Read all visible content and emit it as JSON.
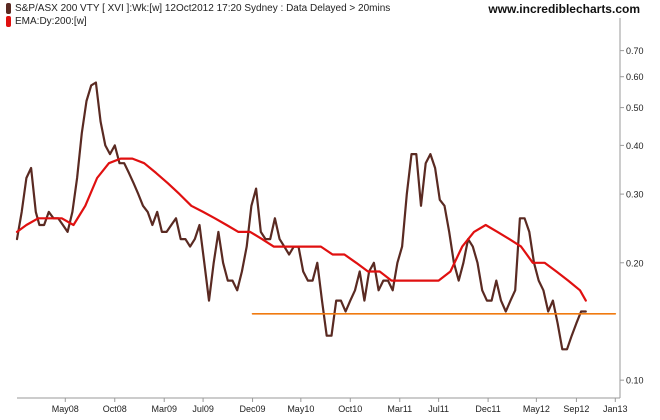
{
  "header": {
    "series_label": "S&P/ASX 200 VTY [ XVI ]:Wk:[w]  12Oct2012 17:20 Sydney : Data Delayed > 20mins",
    "ema_label": "EMA:Dy:200:[w]",
    "brand": "www.incrediblecharts.com"
  },
  "colors": {
    "price": "#5a2a22",
    "ema": "#e01010",
    "support": "#f07a10",
    "axis": "#9a9a9a",
    "background": "#ffffff"
  },
  "chart_data": {
    "type": "line",
    "title": "S&P/ASX 200 VTY [ XVI ]:Wk:[w]",
    "y_scale": "log",
    "ylim": [
      0.09,
      0.8
    ],
    "xlim": [
      2007.92,
      2013.04
    ],
    "x_ticks": [
      "May08",
      "Oct08",
      "Mar09",
      "Jul09",
      "Dec09",
      "May10",
      "Oct10",
      "Mar11",
      "Jul11",
      "Dec11",
      "May12",
      "Sep12",
      "Jan13"
    ],
    "x_tick_values": [
      2008.33,
      2008.75,
      2009.17,
      2009.5,
      2009.92,
      2010.33,
      2010.75,
      2011.17,
      2011.5,
      2011.92,
      2012.33,
      2012.67,
      2013.0
    ],
    "y_ticks": [
      "0.70",
      "0.60",
      "0.50",
      "0.40",
      "0.30",
      "0.20",
      "0.10"
    ],
    "y_tick_values": [
      0.7,
      0.6,
      0.5,
      0.4,
      0.3,
      0.2,
      0.1
    ],
    "legend_placement": "top-left",
    "series": [
      {
        "name": "S&P/ASX 200 VTY [ XVI ]",
        "x": [
          2007.92,
          2007.96,
          2008.0,
          2008.04,
          2008.08,
          2008.11,
          2008.15,
          2008.19,
          2008.23,
          2008.27,
          2008.31,
          2008.35,
          2008.39,
          2008.43,
          2008.47,
          2008.51,
          2008.55,
          2008.59,
          2008.63,
          2008.67,
          2008.71,
          2008.75,
          2008.79,
          2008.83,
          2008.87,
          2008.91,
          2008.95,
          2008.99,
          2009.03,
          2009.07,
          2009.11,
          2009.15,
          2009.19,
          2009.23,
          2009.27,
          2009.31,
          2009.35,
          2009.39,
          2009.43,
          2009.47,
          2009.51,
          2009.55,
          2009.59,
          2009.63,
          2009.67,
          2009.71,
          2009.75,
          2009.79,
          2009.83,
          2009.87,
          2009.91,
          2009.95,
          2009.99,
          2010.03,
          2010.07,
          2010.11,
          2010.15,
          2010.19,
          2010.23,
          2010.27,
          2010.31,
          2010.35,
          2010.39,
          2010.43,
          2010.47,
          2010.51,
          2010.55,
          2010.59,
          2010.63,
          2010.67,
          2010.71,
          2010.75,
          2010.79,
          2010.83,
          2010.87,
          2010.91,
          2010.95,
          2010.99,
          2011.03,
          2011.07,
          2011.11,
          2011.15,
          2011.19,
          2011.23,
          2011.27,
          2011.31,
          2011.35,
          2011.39,
          2011.43,
          2011.47,
          2011.51,
          2011.55,
          2011.59,
          2011.63,
          2011.67,
          2011.71,
          2011.75,
          2011.79,
          2011.83,
          2011.87,
          2011.91,
          2011.95,
          2011.99,
          2012.03,
          2012.07,
          2012.11,
          2012.15,
          2012.19,
          2012.23,
          2012.27,
          2012.31,
          2012.35,
          2012.39,
          2012.43,
          2012.47,
          2012.51,
          2012.55,
          2012.59,
          2012.63,
          2012.67,
          2012.71,
          2012.75
        ],
        "values": [
          0.23,
          0.27,
          0.33,
          0.35,
          0.27,
          0.25,
          0.25,
          0.27,
          0.26,
          0.26,
          0.25,
          0.24,
          0.27,
          0.33,
          0.43,
          0.52,
          0.57,
          0.58,
          0.46,
          0.4,
          0.38,
          0.4,
          0.36,
          0.36,
          0.34,
          0.32,
          0.3,
          0.28,
          0.27,
          0.25,
          0.27,
          0.24,
          0.24,
          0.25,
          0.26,
          0.23,
          0.23,
          0.22,
          0.23,
          0.25,
          0.2,
          0.16,
          0.2,
          0.24,
          0.2,
          0.18,
          0.18,
          0.17,
          0.19,
          0.22,
          0.28,
          0.31,
          0.24,
          0.23,
          0.23,
          0.26,
          0.23,
          0.22,
          0.21,
          0.22,
          0.22,
          0.19,
          0.18,
          0.18,
          0.2,
          0.16,
          0.13,
          0.13,
          0.16,
          0.16,
          0.15,
          0.16,
          0.17,
          0.19,
          0.16,
          0.19,
          0.2,
          0.17,
          0.18,
          0.18,
          0.17,
          0.2,
          0.22,
          0.3,
          0.38,
          0.38,
          0.28,
          0.36,
          0.38,
          0.35,
          0.29,
          0.28,
          0.24,
          0.2,
          0.18,
          0.2,
          0.23,
          0.22,
          0.2,
          0.17,
          0.16,
          0.16,
          0.18,
          0.16,
          0.15,
          0.16,
          0.17,
          0.26,
          0.26,
          0.24,
          0.2,
          0.18,
          0.17,
          0.15,
          0.16,
          0.14,
          0.12,
          0.12,
          0.13,
          0.14,
          0.15,
          0.15
        ]
      },
      {
        "name": "EMA:Dy:200:[w]",
        "x": [
          2007.92,
          2008.0,
          2008.1,
          2008.2,
          2008.3,
          2008.4,
          2008.5,
          2008.6,
          2008.7,
          2008.8,
          2008.9,
          2009.0,
          2009.1,
          2009.2,
          2009.3,
          2009.4,
          2009.5,
          2009.6,
          2009.7,
          2009.8,
          2009.9,
          2010.0,
          2010.1,
          2010.2,
          2010.3,
          2010.4,
          2010.5,
          2010.6,
          2010.7,
          2010.8,
          2010.9,
          2011.0,
          2011.1,
          2011.2,
          2011.3,
          2011.4,
          2011.5,
          2011.6,
          2011.7,
          2011.8,
          2011.9,
          2012.0,
          2012.1,
          2012.2,
          2012.3,
          2012.4,
          2012.5,
          2012.6,
          2012.7,
          2012.75
        ],
        "values": [
          0.24,
          0.25,
          0.26,
          0.26,
          0.26,
          0.25,
          0.28,
          0.33,
          0.36,
          0.37,
          0.37,
          0.36,
          0.34,
          0.32,
          0.3,
          0.28,
          0.27,
          0.26,
          0.25,
          0.24,
          0.24,
          0.23,
          0.22,
          0.22,
          0.22,
          0.22,
          0.22,
          0.21,
          0.21,
          0.2,
          0.19,
          0.19,
          0.18,
          0.18,
          0.18,
          0.18,
          0.18,
          0.19,
          0.22,
          0.24,
          0.25,
          0.24,
          0.23,
          0.22,
          0.2,
          0.2,
          0.19,
          0.18,
          0.17,
          0.16
        ]
      },
      {
        "name": "",
        "x": [
          2009.92,
          2013.0
        ],
        "values": [
          0.148,
          0.148
        ]
      }
    ]
  }
}
